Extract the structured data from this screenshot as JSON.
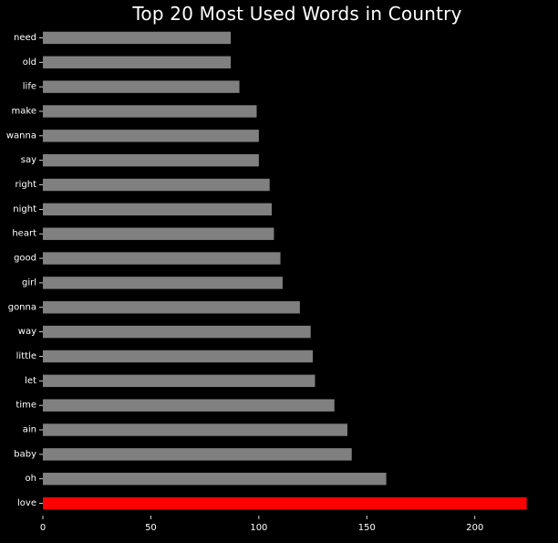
{
  "chart_data": {
    "type": "bar",
    "orientation": "horizontal",
    "title": "Top 20 Most Used Words in Country",
    "xlabel": "",
    "ylabel": "",
    "categories": [
      "love",
      "oh",
      "baby",
      "ain",
      "time",
      "let",
      "little",
      "way",
      "gonna",
      "girl",
      "good",
      "heart",
      "night",
      "right",
      "say",
      "wanna",
      "make",
      "life",
      "old",
      "need"
    ],
    "values": [
      224,
      159,
      143,
      141,
      135,
      126,
      125,
      124,
      119,
      111,
      110,
      107,
      106,
      105,
      100,
      100,
      99,
      91,
      87,
      87
    ],
    "xlim": [
      0,
      225
    ],
    "xticks": [
      0,
      50,
      100,
      150,
      200
    ],
    "grid": false,
    "legend": "none",
    "colors": {
      "background": "#000000",
      "bar": "#808080",
      "highlight": "#ff0000",
      "text": "#ffffff"
    },
    "highlight_index": 0
  }
}
